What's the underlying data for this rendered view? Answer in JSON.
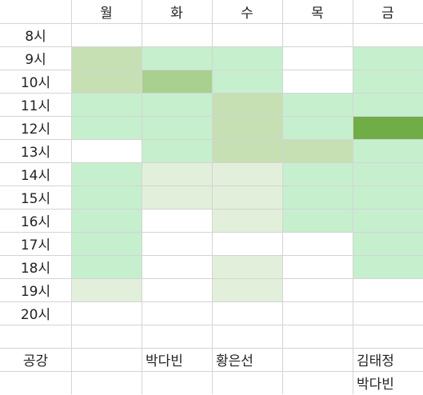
{
  "colors": {
    "light_green": "#c6efce",
    "sage": "#c6e0b4",
    "medium_green": "#a9d08e",
    "dark_green": "#70ad47",
    "pale": "#e2efda",
    "white": "#ffffff",
    "grid_line": "#d4d4d4"
  },
  "days": [
    "월",
    "화",
    "수",
    "목",
    "금"
  ],
  "hours": [
    "8시",
    "9시",
    "10시",
    "11시",
    "12시",
    "13시",
    "14시",
    "15시",
    "16시",
    "17시",
    "18시",
    "19시",
    "20시"
  ],
  "schedule": [
    [
      "white",
      "white",
      "white",
      "white",
      "white"
    ],
    [
      "sage",
      "light_green",
      "light_green",
      "white",
      "light_green"
    ],
    [
      "sage",
      "medium_green",
      "light_green",
      "white",
      "light_green"
    ],
    [
      "light_green",
      "light_green",
      "sage",
      "light_green",
      "light_green"
    ],
    [
      "light_green",
      "light_green",
      "sage",
      "light_green",
      "dark_green"
    ],
    [
      "white",
      "light_green",
      "sage",
      "sage",
      "light_green"
    ],
    [
      "light_green",
      "pale",
      "pale",
      "light_green",
      "light_green"
    ],
    [
      "light_green",
      "pale",
      "pale",
      "light_green",
      "light_green"
    ],
    [
      "light_green",
      "white",
      "pale",
      "light_green",
      "light_green"
    ],
    [
      "light_green",
      "white",
      "white",
      "white",
      "light_green"
    ],
    [
      "light_green",
      "white",
      "pale",
      "white",
      "light_green"
    ],
    [
      "pale",
      "white",
      "pale",
      "white",
      "white"
    ],
    [
      "white",
      "white",
      "white",
      "white",
      "white"
    ]
  ],
  "free_period": {
    "label": "공강",
    "rows": [
      [
        "",
        "박다빈",
        "황은선",
        "",
        "김태정"
      ],
      [
        "",
        "",
        "",
        "",
        "박다빈"
      ]
    ]
  }
}
